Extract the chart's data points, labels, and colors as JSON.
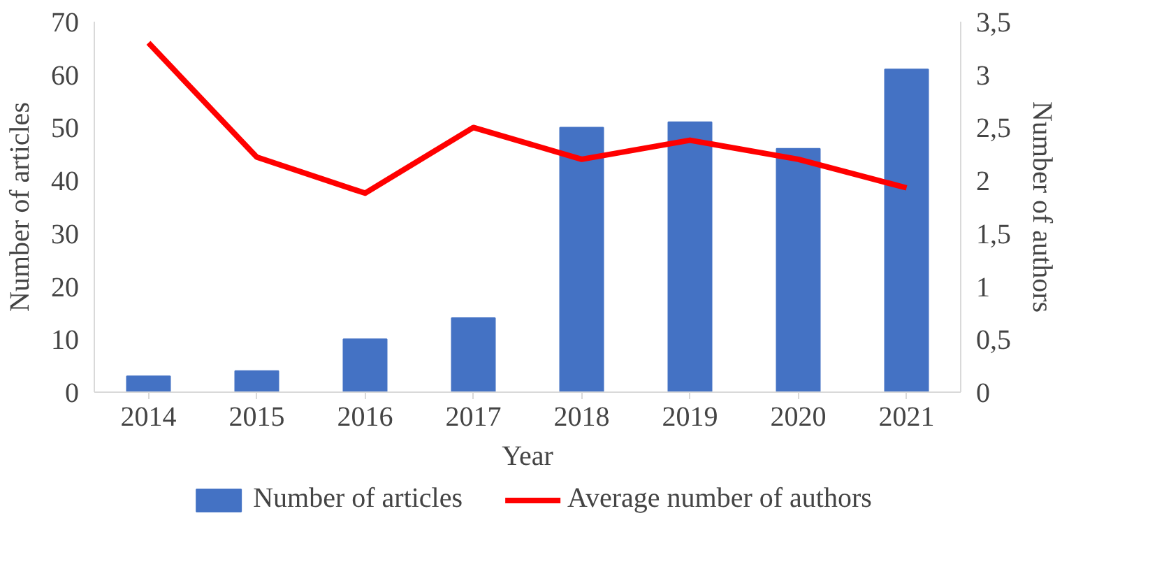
{
  "chart_data": {
    "type": "bar",
    "xlabel": "Year",
    "ylabel": "Number of articles",
    "y2label": "Number of authors",
    "categories": [
      "2014",
      "2015",
      "2016",
      "2017",
      "2018",
      "2019",
      "2020",
      "2021"
    ],
    "series": [
      {
        "name": "Number of articles",
        "color": "#4472c4",
        "values": [
          3,
          4,
          10,
          14,
          50,
          51,
          46,
          61
        ]
      },
      {
        "name": "Average number of authors",
        "type": "line",
        "axis": "y2",
        "color": "#ff0000",
        "values": [
          3.3,
          2.22,
          1.88,
          2.5,
          2.2,
          2.38,
          2.2,
          1.93
        ]
      }
    ],
    "ylim": [
      0,
      70
    ],
    "yticks": [
      0,
      10,
      20,
      30,
      40,
      50,
      60,
      70
    ],
    "y2lim": [
      0,
      3.5
    ],
    "y2ticks": [
      0,
      {
        "value": 0.5,
        "label": "0,5"
      },
      1,
      {
        "value": 1.5,
        "label": "1,5"
      },
      2,
      {
        "value": 2.5,
        "label": "2,5"
      },
      3,
      {
        "value": 3.5,
        "label": "3,5"
      }
    ],
    "grid": false,
    "legend": "bottom",
    "marker": "none",
    "line_style": "solid"
  }
}
